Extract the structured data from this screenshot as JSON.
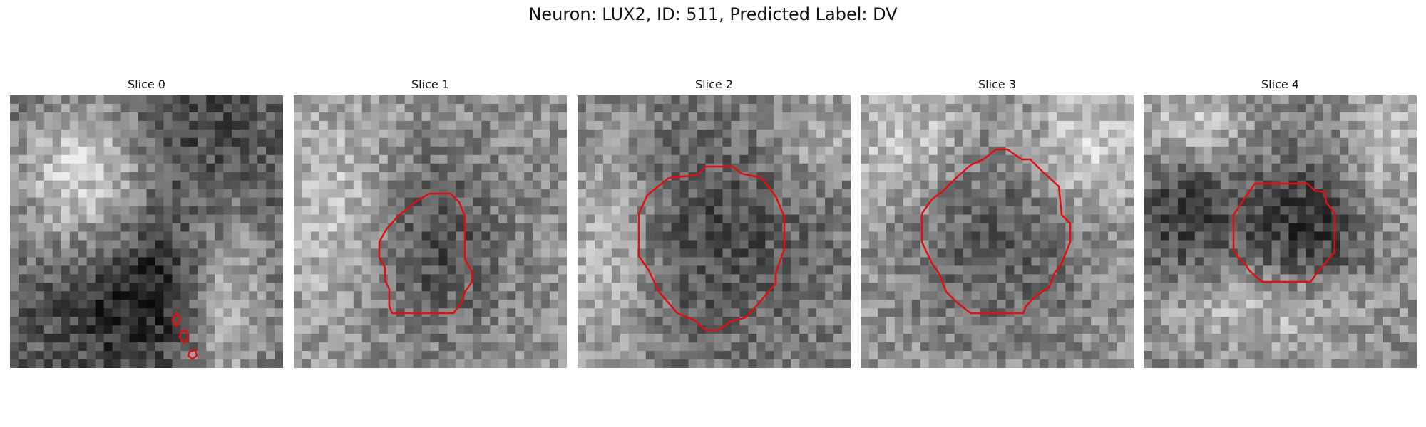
{
  "figure": {
    "title": "Neuron: LUX2, ID: 511, Predicted Label: DV"
  },
  "colors": {
    "contour": "#e01010",
    "background": "#ffffff"
  },
  "panels": [
    {
      "title": "Slice 0",
      "seed": 11,
      "shading": "slice0"
    },
    {
      "title": "Slice 1",
      "seed": 23,
      "shading": "slice1"
    },
    {
      "title": "Slice 2",
      "seed": 37,
      "shading": "slice2"
    },
    {
      "title": "Slice 3",
      "seed": 51,
      "shading": "slice3"
    },
    {
      "title": "Slice 4",
      "seed": 67,
      "shading": "slice4"
    }
  ]
}
